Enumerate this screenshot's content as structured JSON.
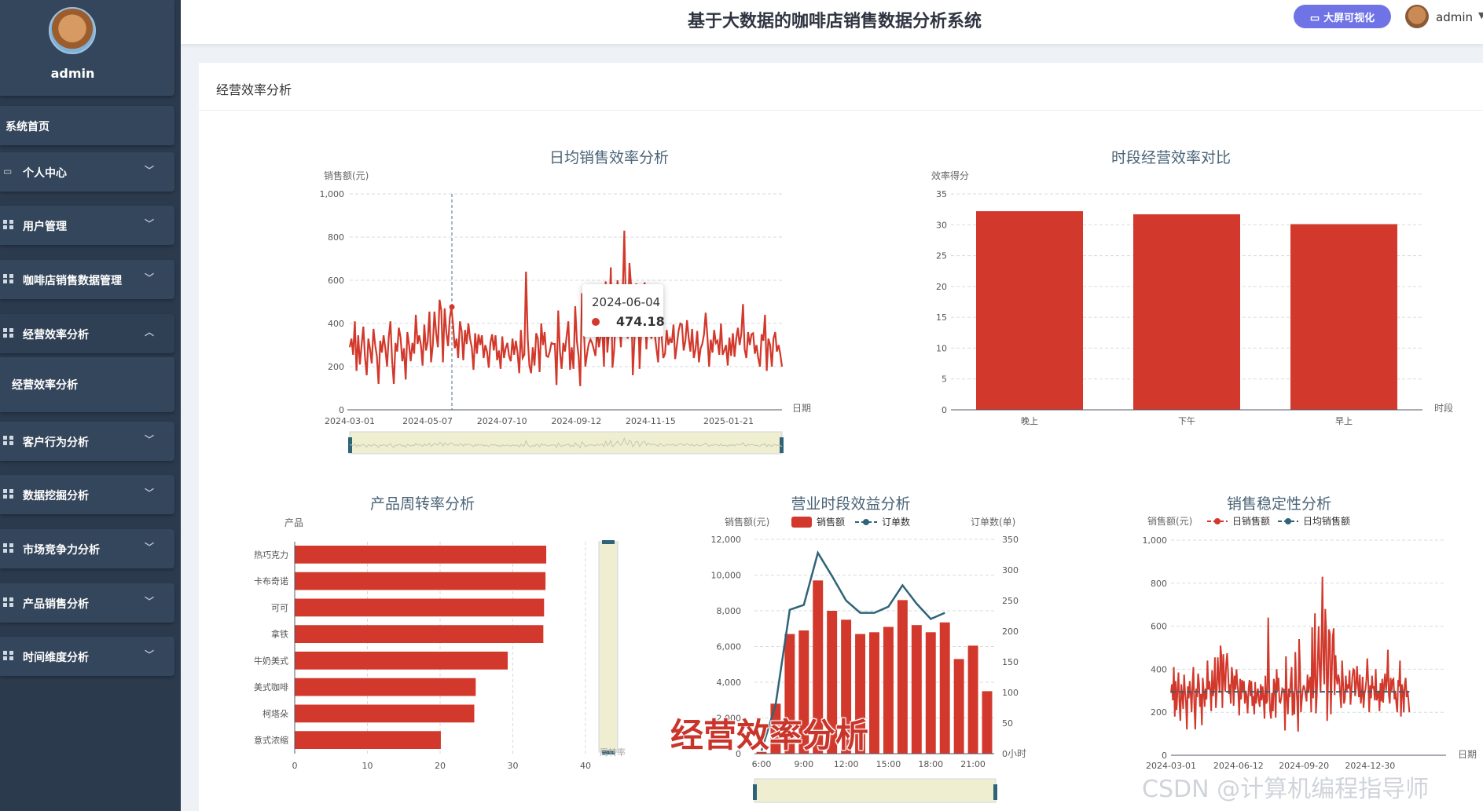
{
  "sidebar": {
    "username": "admin",
    "items": [
      {
        "label": "系统首页",
        "icon": "none"
      },
      {
        "label": "个人中心",
        "icon": "id-card-icon"
      },
      {
        "label": "用户管理",
        "icon": "grid-icon"
      },
      {
        "label": "咖啡店销售数据管理",
        "icon": "grid-icon"
      },
      {
        "label": "经营效率分析",
        "icon": "grid-icon",
        "expanded": true
      },
      {
        "label": "客户行为分析",
        "icon": "grid-icon"
      },
      {
        "label": "数据挖掘分析",
        "icon": "grid-icon"
      },
      {
        "label": "市场竞争力分析",
        "icon": "grid-icon"
      },
      {
        "label": "产品销售分析",
        "icon": "grid-icon"
      },
      {
        "label": "时间维度分析",
        "icon": "grid-icon"
      }
    ],
    "submenu": {
      "label": "经营效率分析"
    }
  },
  "header": {
    "title": "基于大数据的咖啡店销售数据分析系统",
    "bigscreen_label": "大屏可视化",
    "user": "admin"
  },
  "panel": {
    "title": "经营效率分析"
  },
  "tooltip": {
    "date": "2024-06-04",
    "value": "474.18"
  },
  "overlay_caption": "经营效率分析",
  "watermark": "CSDN @计算机编程指导师",
  "colors": {
    "red": "#d2382b",
    "teal": "#2f6478",
    "sidebar": "#2b3a4d",
    "accent": "#6f73e6"
  },
  "chart_data": [
    {
      "type": "line",
      "title": "日均销售效率分析",
      "ylabel": "销售额(元)",
      "xlabel": "日期",
      "ylim": [
        0,
        1000
      ],
      "yticks": [
        "0",
        "200",
        "400",
        "600",
        "800",
        "1,000"
      ],
      "xticks": [
        "2024-03-01",
        "2024-05-07",
        "2024-07-10",
        "2024-09-12",
        "2024-11-15",
        "2025-01-21"
      ],
      "x_range": [
        "2024-03-01",
        "2025-03-08"
      ],
      "values": [
        290,
        330,
        255,
        410,
        180,
        345,
        210,
        300,
        385,
        245,
        160,
        330,
        280,
        215,
        375,
        300,
        250,
        120,
        320,
        265,
        345,
        285,
        200,
        335,
        410,
        230,
        120,
        310,
        270,
        380,
        335,
        225,
        285,
        140,
        360,
        300,
        225,
        310,
        260,
        440,
        305,
        345,
        300,
        205,
        395,
        275,
        315,
        455,
        220,
        300,
        455,
        355,
        290,
        510,
        460,
        220,
        470,
        360,
        295,
        425,
        474,
        390,
        285,
        330,
        240,
        410,
        365,
        230,
        370,
        305,
        400,
        330,
        290,
        185,
        355,
        260,
        350,
        300,
        345,
        240,
        300,
        270,
        195,
        310,
        350,
        275,
        345,
        230,
        275,
        190,
        340,
        240,
        285,
        310,
        250,
        225,
        330,
        255,
        320,
        265,
        170,
        370,
        240,
        255,
        640,
        330,
        205,
        170,
        290,
        205,
        355,
        330,
        175,
        400,
        300,
        360,
        250,
        245,
        270,
        310,
        305,
        305,
        115,
        460,
        270,
        190,
        310,
        270,
        345,
        410,
        185,
        290,
        190,
        480,
        320,
        250,
        110,
        540,
        410,
        200,
        260,
        305,
        325,
        310,
        280,
        250,
        375,
        290,
        345,
        365,
        200,
        595,
        265,
        370,
        660,
        195,
        280,
        450,
        600,
        410,
        290,
        520,
        830,
        430,
        330,
        680,
        575,
        160,
        335,
        585,
        565,
        190,
        380,
        550,
        590,
        280,
        465,
        365,
        330,
        375,
        350,
        280,
        220,
        440,
        340,
        240,
        260,
        370,
        300,
        330,
        310,
        395,
        235,
        300,
        365,
        400,
        395,
        275,
        320,
        415,
        330,
        270,
        375,
        240,
        280,
        365,
        220,
        285,
        305,
        350,
        450,
        340,
        200,
        325,
        265,
        370,
        310,
        320,
        255,
        400,
        255,
        275,
        300,
        205,
        335,
        250,
        355,
        245,
        330,
        380,
        300,
        350,
        490,
        280,
        240,
        360,
        300,
        350,
        355,
        260,
        300,
        240,
        200,
        350,
        320,
        440,
        180,
        330,
        300,
        200,
        330,
        360,
        270,
        300,
        260,
        200
      ]
    },
    {
      "type": "bar",
      "title": "时段经营效率对比",
      "ylabel": "效率得分",
      "xlabel": "时段",
      "ylim": [
        0,
        35
      ],
      "yticks": [
        "0",
        "5",
        "10",
        "15",
        "20",
        "25",
        "30",
        "35"
      ],
      "categories": [
        "晚上",
        "下午",
        "早上"
      ],
      "values": [
        32.2,
        31.7,
        30.1
      ]
    },
    {
      "type": "bar",
      "orientation": "horizontal",
      "title": "产品周转率分析",
      "ylabel": "产品",
      "xlabel": "周转率",
      "xlim": [
        0,
        40
      ],
      "xticks": [
        "0",
        "10",
        "20",
        "30",
        "40"
      ],
      "categories": [
        "热巧克力",
        "卡布奇诺",
        "可可",
        "拿铁",
        "牛奶美式",
        "美式咖啡",
        "柯塔朵",
        "意式浓缩"
      ],
      "values": [
        34.6,
        34.5,
        34.3,
        34.2,
        29.3,
        24.9,
        24.7,
        20.1
      ]
    },
    {
      "type": "bar",
      "title": "营业时段效益分析",
      "ylabel": "销售额(元)",
      "ylabel_right": "订单数(单)",
      "xlabel_right": "小时",
      "ylim": [
        0,
        12000
      ],
      "ylim_right": [
        0,
        350
      ],
      "yticks": [
        "0",
        "2,000",
        "4,000",
        "6,000",
        "8,000",
        "10,000",
        "12,000"
      ],
      "yticks_right": [
        "0",
        "50",
        "100",
        "150",
        "200",
        "250",
        "300",
        "350"
      ],
      "xticks": [
        "6:00",
        "9:00",
        "12:00",
        "15:00",
        "18:00",
        "21:00"
      ],
      "categories": [
        "6:00",
        "7:00",
        "8:00",
        "9:00",
        "10:00",
        "11:00",
        "12:00",
        "13:00",
        "14:00",
        "15:00",
        "16:00",
        "17:00",
        "18:00",
        "19:00",
        "20:00",
        "21:00",
        "22:00"
      ],
      "series": [
        {
          "name": "销售额",
          "kind": "bar",
          "values": [
            100,
            2800,
            6700,
            6900,
            9700,
            8000,
            7500,
            6700,
            6800,
            7100,
            8600,
            7200,
            6800,
            7350,
            5300,
            6050,
            3500
          ]
        },
        {
          "name": "订单数",
          "kind": "line",
          "values": [
            5,
            80,
            235,
            243,
            328,
            290,
            250,
            230,
            230,
            240,
            275,
            245,
            220,
            230,
            null,
            null,
            null
          ]
        }
      ]
    },
    {
      "type": "line",
      "title": "销售稳定性分析",
      "ylabel": "销售额(元)",
      "xlabel": "日期",
      "ylim": [
        0,
        1000
      ],
      "yticks": [
        "0",
        "200",
        "400",
        "600",
        "800",
        "1,000"
      ],
      "xticks": [
        "2024-03-01",
        "2024-06-12",
        "2024-09-20",
        "2024-12-30"
      ],
      "x_range": [
        "2024-03-01",
        "2025-04-25"
      ],
      "series": [
        {
          "name": "日销售额",
          "kind": "line"
        },
        {
          "name": "日均销售额",
          "kind": "line",
          "value": 295
        }
      ]
    }
  ]
}
